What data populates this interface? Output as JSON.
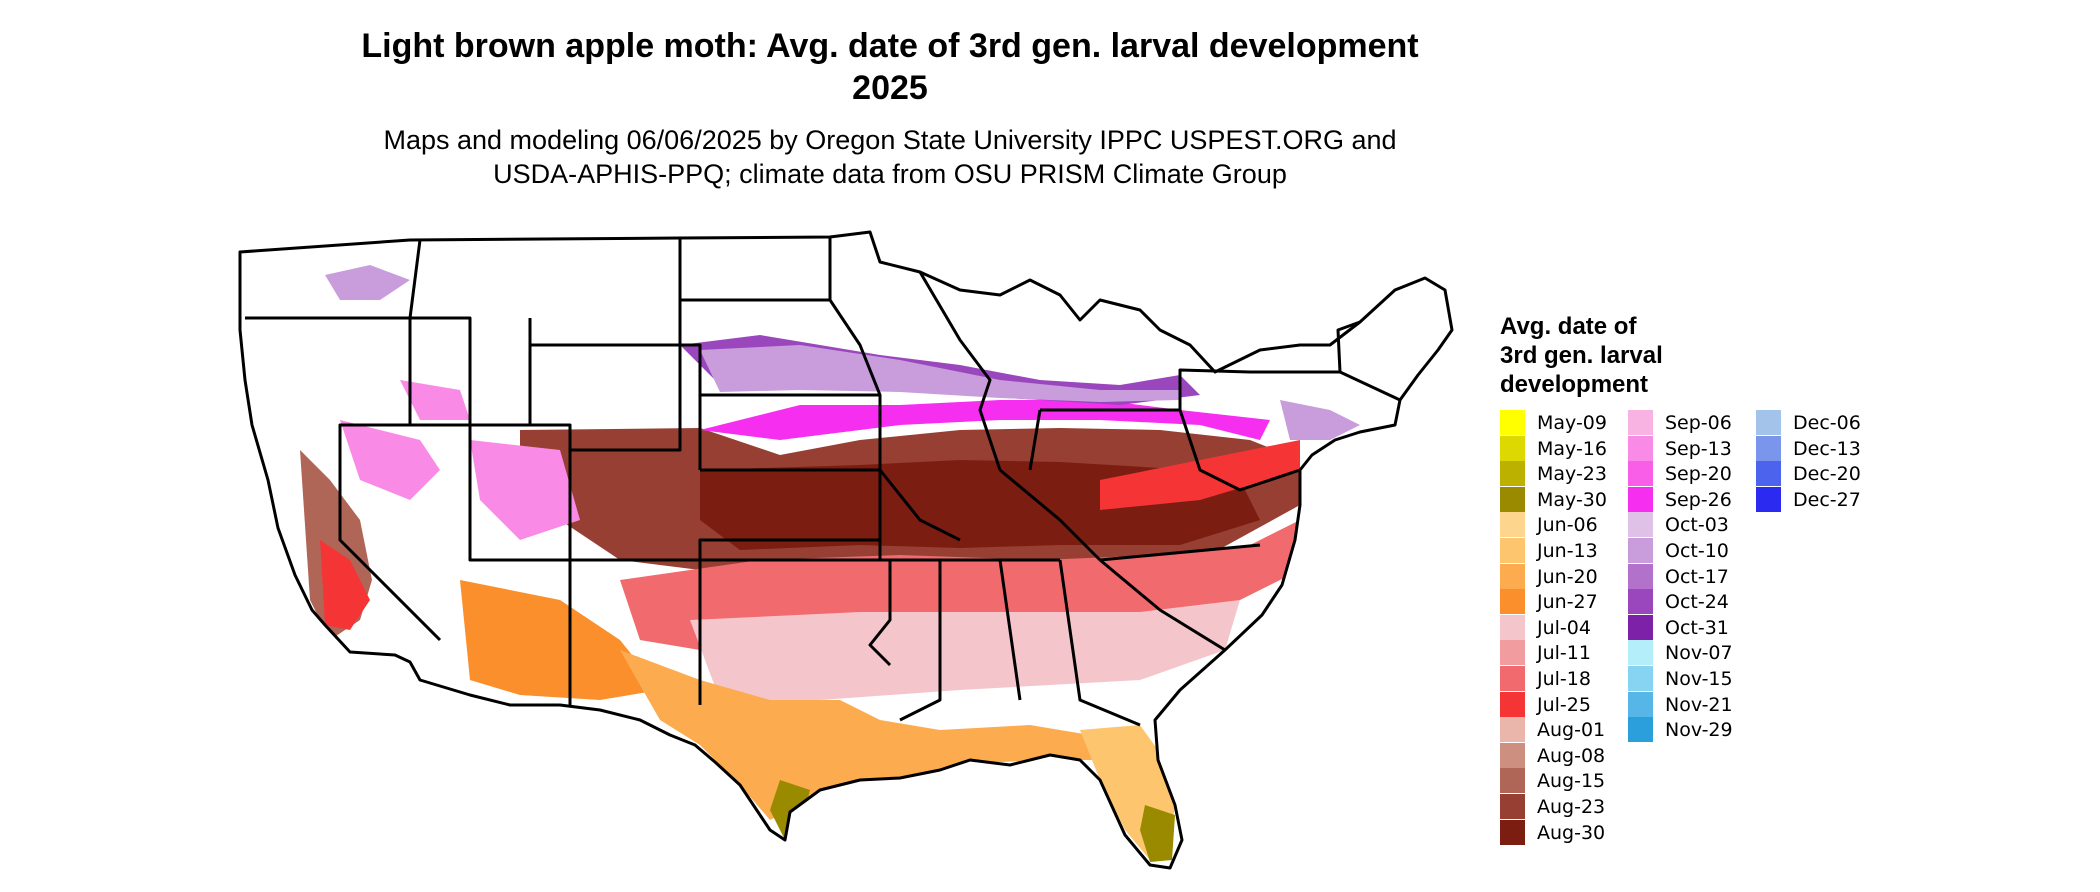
{
  "title_line1": "Light brown apple moth: Avg. date of 3rd gen. larval development",
  "title_line2": "2025",
  "subtitle_line1": "Maps and modeling 06/06/2025 by Oregon State University IPPC USPEST.ORG and",
  "subtitle_line2": "USDA-APHIS-PPQ; climate data from OSU PRISM Climate Group",
  "legend": {
    "title_lines": [
      "Avg. date of",
      "3rd gen. larval",
      "development"
    ],
    "items": [
      {
        "label": "May-09",
        "color": "#ffff00"
      },
      {
        "label": "May-16",
        "color": "#dcd800"
      },
      {
        "label": "May-23",
        "color": "#bdb100"
      },
      {
        "label": "May-30",
        "color": "#9a8a00"
      },
      {
        "label": "Jun-06",
        "color": "#fdd58c"
      },
      {
        "label": "Jun-13",
        "color": "#fdc56d"
      },
      {
        "label": "Jun-20",
        "color": "#fcab4e"
      },
      {
        "label": "Jun-27",
        "color": "#fb8f2c"
      },
      {
        "label": "Jul-04",
        "color": "#f4c6cc"
      },
      {
        "label": "Jul-11",
        "color": "#f19c9f"
      },
      {
        "label": "Jul-18",
        "color": "#f06a6e"
      },
      {
        "label": "Jul-25",
        "color": "#f53535"
      },
      {
        "label": "Aug-01",
        "color": "#eab5aa"
      },
      {
        "label": "Aug-08",
        "color": "#cc8f80"
      },
      {
        "label": "Aug-15",
        "color": "#b06657"
      },
      {
        "label": "Aug-23",
        "color": "#963f32"
      },
      {
        "label": "Aug-30",
        "color": "#7c1d12"
      },
      {
        "label": "Sep-06",
        "color": "#f9b3e3"
      },
      {
        "label": "Sep-13",
        "color": "#f98ae6"
      },
      {
        "label": "Sep-20",
        "color": "#f95ee8"
      },
      {
        "label": "Sep-26",
        "color": "#f52ef0"
      },
      {
        "label": "Oct-03",
        "color": "#dfc1e8"
      },
      {
        "label": "Oct-10",
        "color": "#c99ddc"
      },
      {
        "label": "Oct-17",
        "color": "#b272cc"
      },
      {
        "label": "Oct-24",
        "color": "#9a47bd"
      },
      {
        "label": "Oct-31",
        "color": "#7d22a8"
      },
      {
        "label": "Nov-07",
        "color": "#b4eefb"
      },
      {
        "label": "Nov-15",
        "color": "#86d3f2"
      },
      {
        "label": "Nov-21",
        "color": "#56b6e8"
      },
      {
        "label": "Nov-29",
        "color": "#2a9fdc"
      },
      {
        "label": "Dec-06",
        "color": "#a3c3ea"
      },
      {
        "label": "Dec-13",
        "color": "#7996ec"
      },
      {
        "label": "Dec-20",
        "color": "#4c63ee"
      },
      {
        "label": "Dec-27",
        "color": "#2a2af0"
      }
    ]
  }
}
